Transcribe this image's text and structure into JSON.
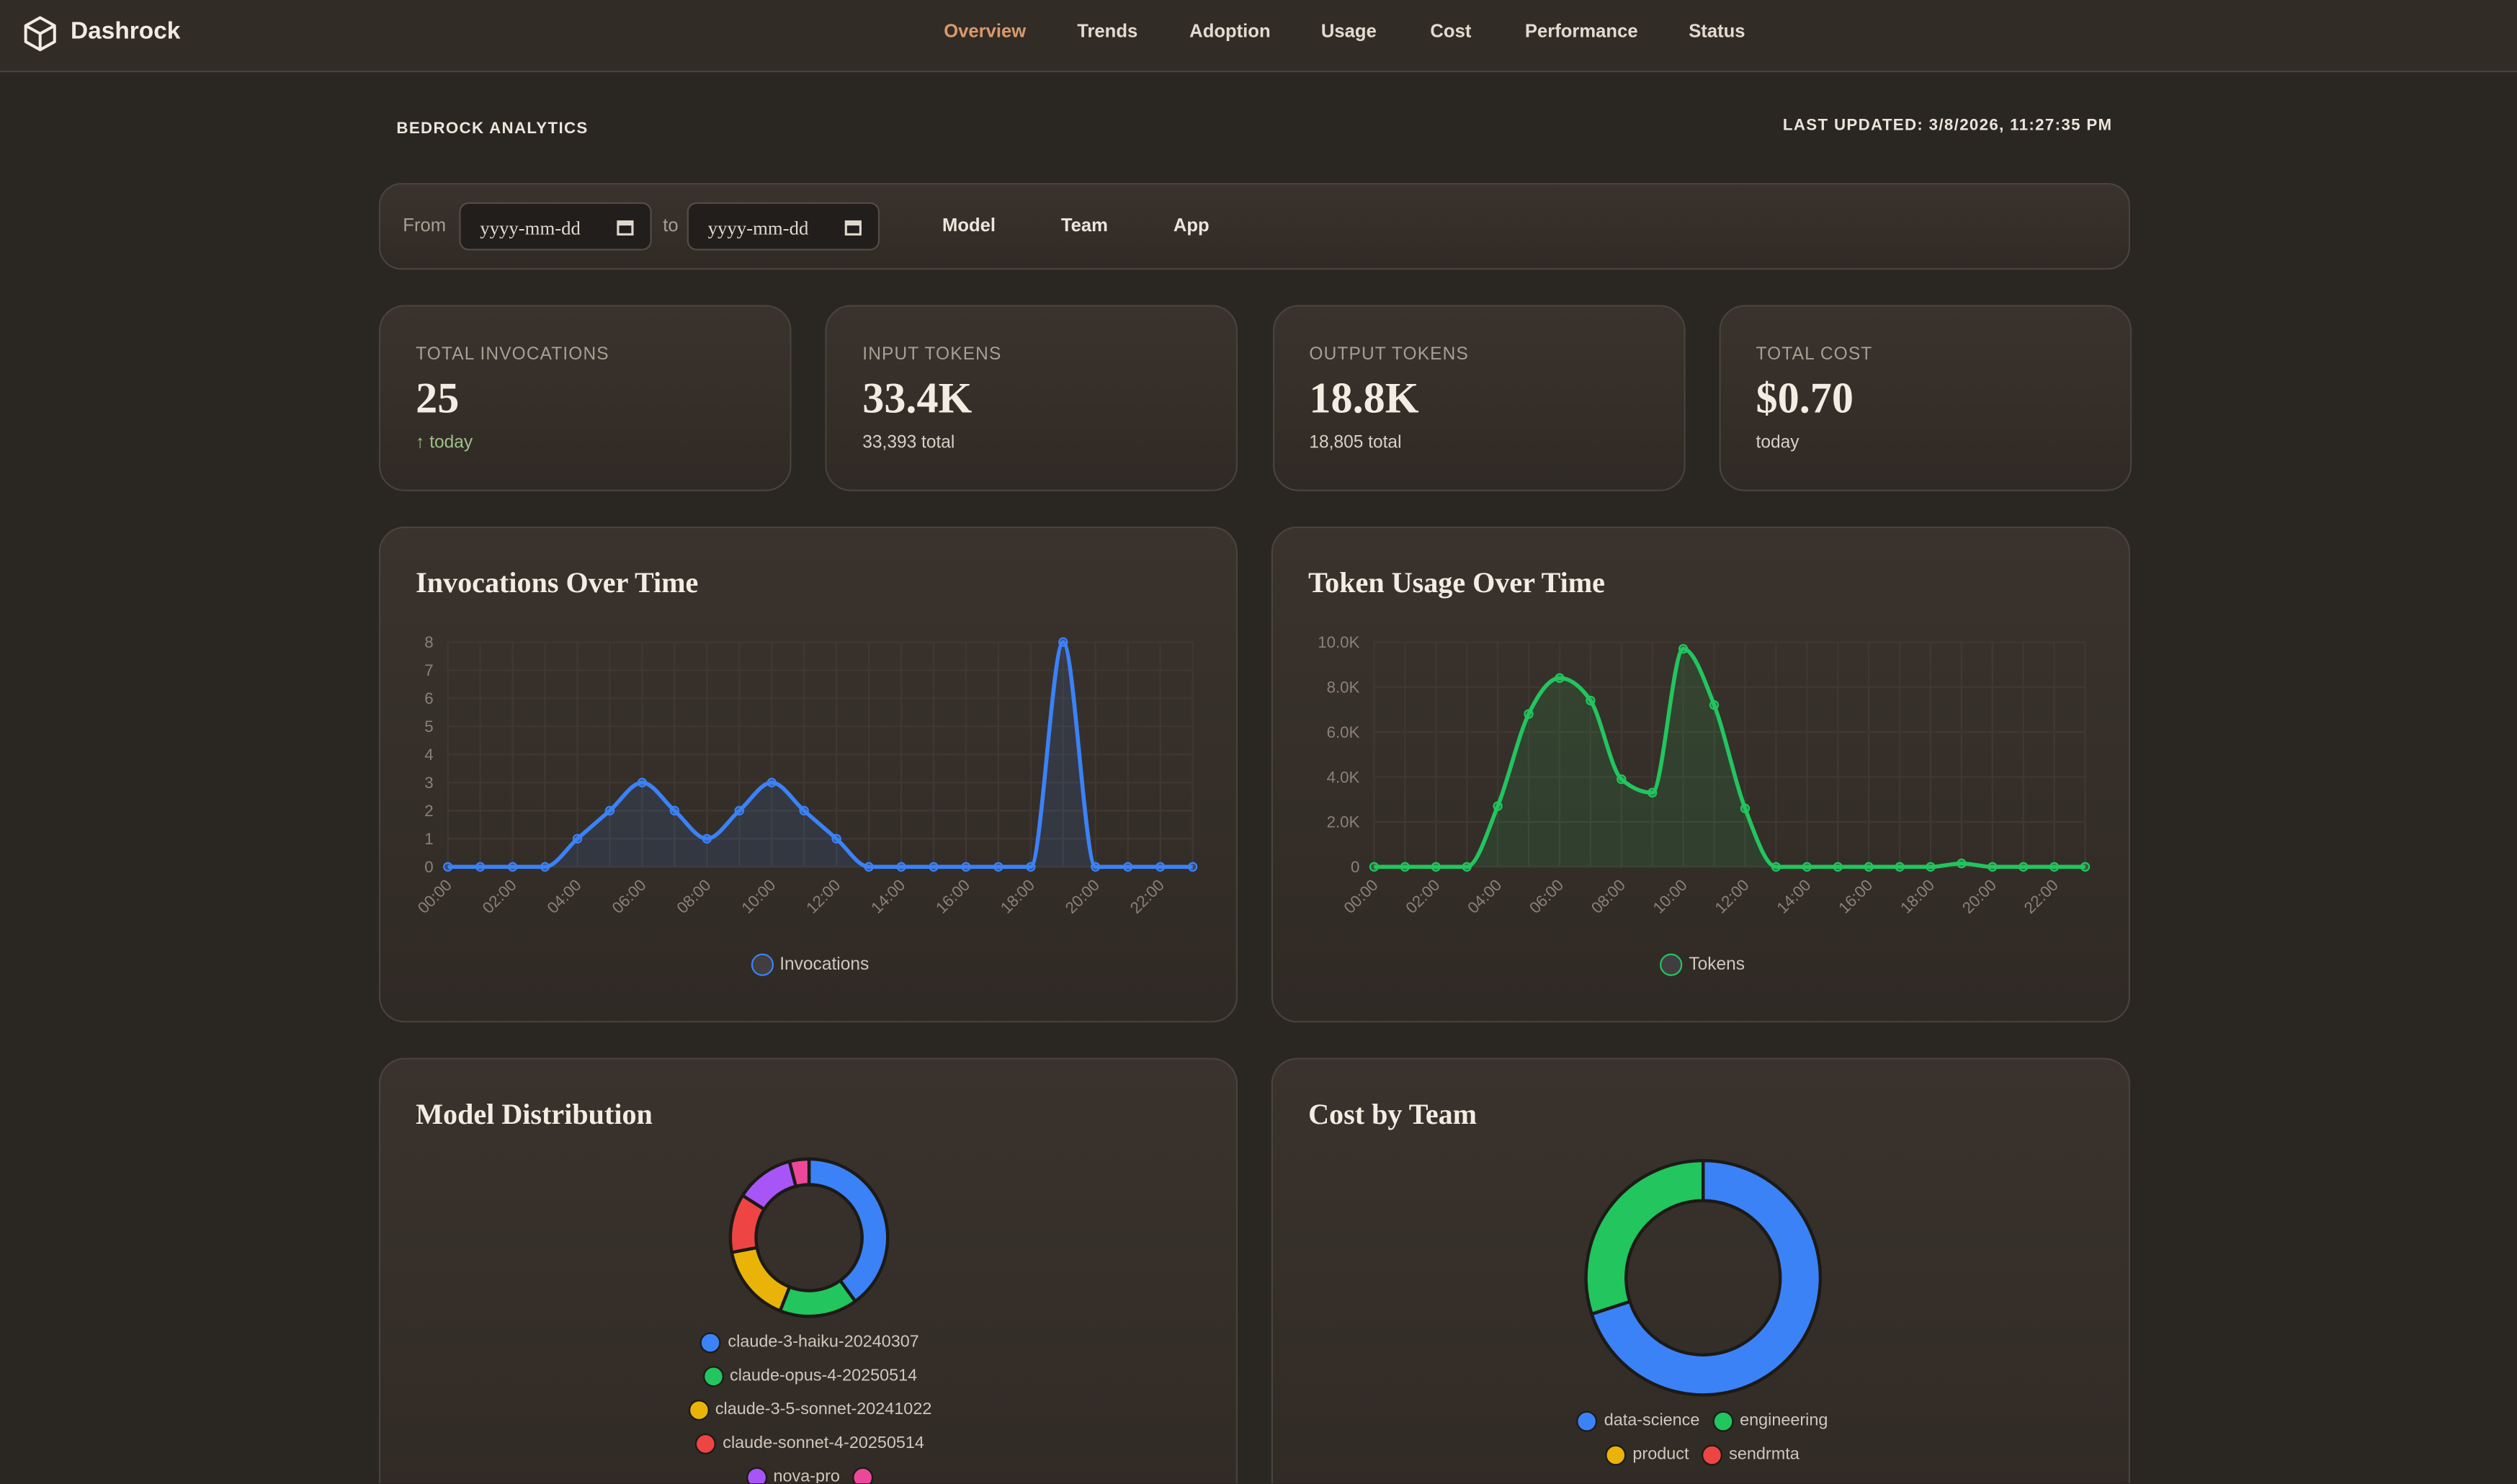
{
  "nav": {
    "brand": "Dashrock",
    "items": [
      "Overview",
      "Trends",
      "Adoption",
      "Usage",
      "Cost",
      "Performance",
      "Status"
    ]
  },
  "header": {
    "title": "BEDROCK ANALYTICS",
    "updated": "LAST UPDATED: 3/8/2026, 11:27:35 PM"
  },
  "filters": {
    "from_label": "From",
    "from": {
      "placeholder": "yyyy-mm-dd"
    },
    "to_label": "to",
    "to": {
      "placeholder": "yyyy-mm-dd"
    },
    "buttons": [
      "Model",
      "Team",
      "App"
    ]
  },
  "stats": [
    {
      "label": "TOTAL INVOCATIONS",
      "value": "25",
      "note": "↑ today"
    },
    {
      "label": "INPUT TOKENS",
      "value": "33.4K",
      "note": "33,393 total"
    },
    {
      "label": "OUTPUT TOKENS",
      "value": "18.8K",
      "note": "18,805 total"
    },
    {
      "label": "TOTAL COST",
      "value": "$0.70",
      "note": "today"
    }
  ],
  "chart_data": [
    {
      "type": "line",
      "title": "Invocations Over Time",
      "categories": [
        "00:00",
        null,
        "02:00",
        null,
        "04:00",
        null,
        "06:00",
        null,
        "08:00",
        null,
        "10:00",
        null,
        "12:00",
        null,
        "14:00",
        null,
        "16:00",
        null,
        "18:00",
        null,
        "20:00",
        null,
        "22:00",
        null
      ],
      "series": [
        {
          "name": "Invocations",
          "color": "#3b82f6",
          "values": [
            0,
            0,
            0,
            0,
            1,
            2,
            3,
            2,
            1,
            2,
            3,
            2,
            1,
            0,
            0,
            0,
            0,
            0,
            0,
            8,
            0,
            0,
            0,
            0
          ]
        }
      ],
      "ylim": [
        0,
        8
      ],
      "yticks": [
        0,
        1,
        2,
        3,
        4,
        5,
        6,
        7,
        8
      ],
      "grid": true
    },
    {
      "type": "line",
      "title": "Token Usage Over Time",
      "categories": [
        "00:00",
        null,
        "02:00",
        null,
        "04:00",
        null,
        "06:00",
        null,
        "08:00",
        null,
        "10:00",
        null,
        "12:00",
        null,
        "14:00",
        null,
        "16:00",
        null,
        "18:00",
        null,
        "20:00",
        null,
        "22:00",
        null
      ],
      "series": [
        {
          "name": "Tokens",
          "color": "#22c55e",
          "values": [
            0,
            0,
            0,
            0,
            2700,
            6800,
            8400,
            7400,
            3900,
            3300,
            9700,
            7200,
            2600,
            0,
            0,
            0,
            0,
            0,
            0,
            150,
            0,
            0,
            0,
            0
          ]
        }
      ],
      "ylim": [
        0,
        10000
      ],
      "yticks": [
        0,
        {
          "value": 2000,
          "label": "2.0K"
        },
        {
          "value": 4000,
          "label": "4.0K"
        },
        {
          "value": 6000,
          "label": "6.0K"
        },
        {
          "value": 8000,
          "label": "8.0K"
        },
        {
          "value": 10000,
          "label": "10.0K"
        }
      ],
      "grid": true
    },
    {
      "type": "donut",
      "title": "Model Distribution",
      "categories": [
        "claude-3-haiku-20240307",
        "claude-opus-4-20250514",
        "claude-3-5-sonnet-20241022",
        "claude-sonnet-4-20250514",
        "nova-pro",
        null
      ],
      "values": [
        10,
        4,
        4,
        3,
        3,
        1
      ],
      "colors": [
        "#3b82f6",
        "#22c55e",
        "#eab308",
        "#ef4444",
        "#a855f7",
        "#ec4899"
      ]
    },
    {
      "type": "donut",
      "title": "Cost by Team",
      "categories": [
        "data-science",
        "engineering",
        "product",
        "sendrmta"
      ],
      "values": [
        0.49,
        0.21,
        0,
        0
      ],
      "colors": [
        "#3b82f6",
        "#22c55e",
        "#eab308",
        "#ef4444"
      ]
    }
  ]
}
